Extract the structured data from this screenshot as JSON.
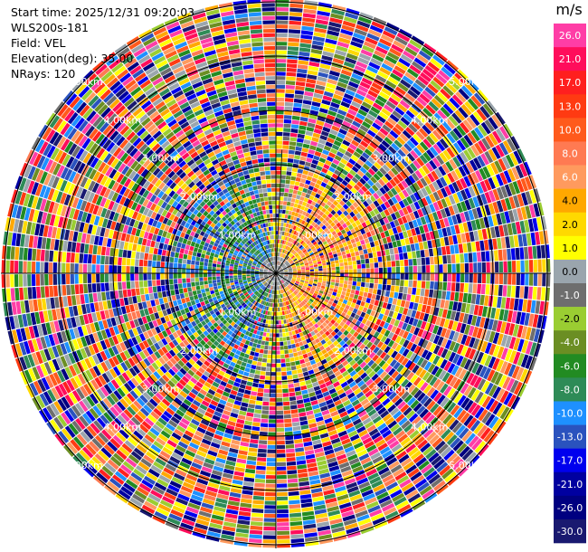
{
  "header": {
    "start_time": "Start time: 2025/12/31 09:20:03",
    "instrument": "WLS200s-181",
    "field": "Field: VEL",
    "elevation": "Elevation(deg): 35.00",
    "nrays": "NRays: 120"
  },
  "chart_data": {
    "type": "heatmap",
    "projection": "polar-ppi",
    "field": "VEL",
    "units": "m/s",
    "nrays": 120,
    "elevation_deg": 35.0,
    "range_ring_labels": [
      "1.00km",
      "2.00km",
      "3.00km",
      "4.00km",
      "5.00km"
    ],
    "colorbar": {
      "title": "m/s",
      "ticks": [
        "26.0",
        "21.0",
        "17.0",
        "13.0",
        "10.0",
        "8.0",
        "6.0",
        "4.0",
        "2.0",
        "1.0",
        "0.0",
        "-1.0",
        "-2.0",
        "-4.0",
        "-6.0",
        "-8.0",
        "-10.0",
        "-13.0",
        "-17.0",
        "-21.0",
        "-26.0",
        "-30.0"
      ],
      "colors": [
        "#ff3da6",
        "#ff0d5b",
        "#ff1f1f",
        "#ff3a12",
        "#ff5a1c",
        "#ff7a52",
        "#ff9a5e",
        "#ffa800",
        "#ffd900",
        "#ffff00",
        "#9aa5ad",
        "#6e6e6e",
        "#9acd32",
        "#6b8e23",
        "#228b22",
        "#2e8b57",
        "#1e90ff",
        "#2a52be",
        "#0000ee",
        "#0000a0",
        "#000080",
        "#191970"
      ]
    },
    "inner_pattern_note": "near-field velocities: positive (orange/yellow) to the east, negative (blue/green) to the west, random noise beyond ~2 km"
  }
}
